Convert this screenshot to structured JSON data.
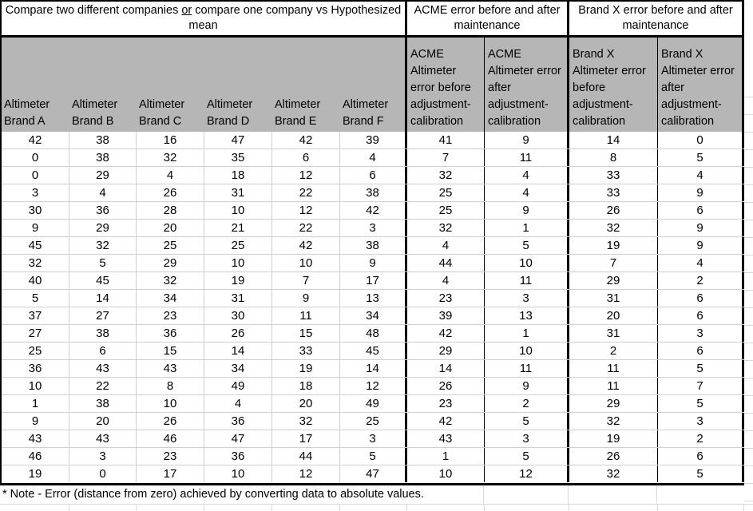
{
  "titles": {
    "compare_pre": "Compare two different companies ",
    "compare_or": "or",
    "compare_post": " compare one company vs Hypothesized\nmean",
    "acme": "ACME error before and after\nmaintenance",
    "brandx": "Brand X error before and after\nmaintenance"
  },
  "headers": {
    "brand_a": "Altimeter\nBrand A",
    "brand_b": "Altimeter\nBrand B",
    "brand_c": "Altimeter\nBrand C",
    "brand_d": "Altimeter\nBrand D",
    "brand_e": "Altimeter\nBrand E",
    "brand_f": "Altimeter\nBrand F",
    "acme_before": "ACME\nAltimeter\nerror before\nadjustment-\ncalibration",
    "acme_after": "ACME\nAltimeter error\nafter\nadjustment-\ncalibration",
    "brandx_before": "Brand X\nAltimeter error\nbefore\nadjustment-\ncalibration",
    "brandx_after": "Brand X\nAltimeter error\nafter\nadjustment-\ncalibration"
  },
  "table": {
    "columns": [
      "Altimeter Brand A",
      "Altimeter Brand B",
      "Altimeter Brand C",
      "Altimeter Brand D",
      "Altimeter Brand E",
      "Altimeter Brand F",
      "ACME Altimeter error before adjustment-calibration",
      "ACME Altimeter error after adjustment-calibration",
      "Brand X Altimeter error before adjustment-calibration",
      "Brand X Altimeter error after adjustment-calibration"
    ],
    "rows": [
      [
        42,
        38,
        16,
        47,
        42,
        39,
        41,
        9,
        14,
        0
      ],
      [
        0,
        38,
        32,
        35,
        6,
        4,
        7,
        11,
        8,
        5
      ],
      [
        0,
        29,
        4,
        18,
        12,
        6,
        32,
        4,
        33,
        4
      ],
      [
        3,
        4,
        26,
        31,
        22,
        38,
        25,
        4,
        33,
        9
      ],
      [
        30,
        36,
        28,
        10,
        12,
        42,
        25,
        9,
        26,
        6
      ],
      [
        9,
        29,
        20,
        21,
        22,
        3,
        32,
        1,
        32,
        9
      ],
      [
        45,
        32,
        25,
        25,
        42,
        38,
        4,
        5,
        19,
        9
      ],
      [
        32,
        5,
        29,
        10,
        10,
        9,
        44,
        10,
        7,
        4
      ],
      [
        40,
        45,
        32,
        19,
        7,
        17,
        4,
        11,
        29,
        2
      ],
      [
        5,
        14,
        34,
        31,
        9,
        13,
        23,
        3,
        31,
        6
      ],
      [
        37,
        27,
        23,
        30,
        11,
        34,
        39,
        13,
        20,
        6
      ],
      [
        27,
        38,
        36,
        26,
        15,
        48,
        42,
        1,
        31,
        3
      ],
      [
        25,
        6,
        15,
        14,
        33,
        45,
        29,
        10,
        2,
        6
      ],
      [
        36,
        43,
        43,
        34,
        19,
        14,
        14,
        11,
        11,
        5
      ],
      [
        10,
        22,
        8,
        49,
        18,
        12,
        26,
        9,
        11,
        7
      ],
      [
        1,
        38,
        10,
        4,
        20,
        49,
        23,
        2,
        29,
        5
      ],
      [
        9,
        20,
        26,
        36,
        32,
        25,
        42,
        5,
        32,
        3
      ],
      [
        43,
        43,
        46,
        47,
        17,
        3,
        43,
        3,
        19,
        2
      ],
      [
        46,
        3,
        23,
        36,
        44,
        5,
        1,
        5,
        26,
        6
      ],
      [
        19,
        0,
        17,
        10,
        12,
        47,
        10,
        12,
        32,
        5
      ]
    ]
  },
  "note": "* Note - Error (distance from zero) achieved by converting data to absolute values.",
  "colors": {
    "header_fill": "#b6b6b6",
    "thick_border": "#000000",
    "grid_line": "#cfcfcf",
    "faint_line": "#d9d9d9"
  }
}
